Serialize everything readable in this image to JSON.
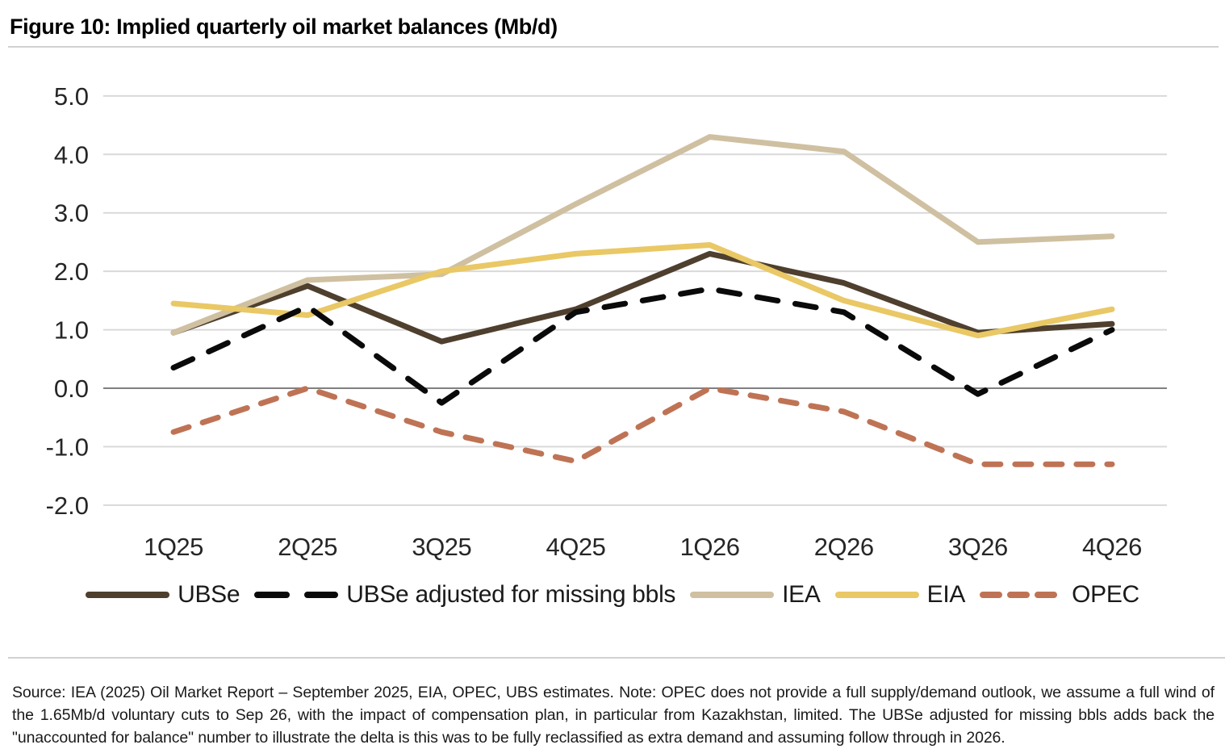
{
  "figure": {
    "title": "Figure 10: Implied quarterly oil market balances (Mb/d)",
    "source_note": "Source: IEA (2025) Oil Market Report – September 2025, EIA, OPEC, UBS estimates. Note: OPEC does not provide a full supply/demand outlook, we assume a full wind of the 1.65Mb/d voluntary cuts to Sep 26, with the impact of compensation plan, in particular from Kazakhstan, limited. The UBSe adjusted for missing bbls adds back the \"unaccounted for balance\" number to illustrate the delta is this was to be fully reclassified as extra demand and assuming follow through in 2026."
  },
  "colors": {
    "gridline": "#d9d9d9",
    "zero_line": "#808080",
    "divider": "#d1d1d1",
    "axis_text": "#262626",
    "legend_text": "#1a1a1a"
  },
  "chart_data": {
    "type": "line",
    "title": "Implied quarterly oil market balances (Mb/d)",
    "xlabel": "",
    "ylabel": "Mb/d",
    "categories": [
      "1Q25",
      "2Q25",
      "3Q25",
      "4Q25",
      "1Q26",
      "2Q26",
      "3Q26",
      "4Q26"
    ],
    "y_ticks": [
      "5.0",
      "4.0",
      "3.0",
      "2.0",
      "1.0",
      "0.0",
      "-1.0",
      "-2.0"
    ],
    "ylim": [
      -2.0,
      5.0
    ],
    "grid": "horizontal",
    "legend_position": "bottom",
    "series": [
      {
        "name": "UBSe",
        "color": "#4e3f2e",
        "style": "solid",
        "values": [
          0.95,
          1.75,
          0.8,
          1.35,
          2.3,
          1.8,
          0.95,
          1.1
        ]
      },
      {
        "name": "UBSe adjusted for missing bbls",
        "color": "#0a0a0a",
        "style": "dashed",
        "values": [
          0.35,
          1.4,
          -0.25,
          1.3,
          1.7,
          1.3,
          -0.1,
          1.0
        ]
      },
      {
        "name": "IEA",
        "color": "#cfc0a1",
        "style": "solid",
        "values": [
          0.95,
          1.85,
          1.95,
          3.15,
          4.3,
          4.05,
          2.5,
          2.6
        ]
      },
      {
        "name": "EIA",
        "color": "#e9c865",
        "style": "solid",
        "values": [
          1.45,
          1.25,
          2.0,
          2.3,
          2.45,
          1.5,
          0.9,
          1.35
        ]
      },
      {
        "name": "OPEC",
        "color": "#bf7355",
        "style": "dashed",
        "values": [
          -0.75,
          0.0,
          -0.75,
          -1.25,
          0.0,
          -0.4,
          -1.3,
          -1.3
        ]
      }
    ],
    "draw_order": [
      0,
      2,
      3,
      4,
      1
    ]
  }
}
